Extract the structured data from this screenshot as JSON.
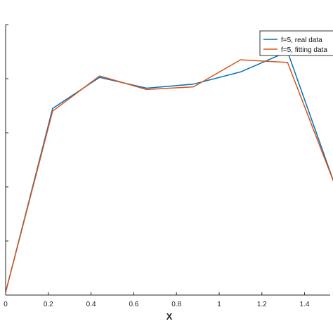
{
  "chart_data": {
    "type": "line",
    "xlabel": "X",
    "ylabel": "",
    "xlim": [
      0,
      1.6
    ],
    "ylim": [
      0,
      1
    ],
    "x_ticks": [
      0,
      0.2,
      0.4,
      0.6,
      0.8,
      1,
      1.2,
      1.4
    ],
    "x_tick_labels": [
      "0",
      "0.2",
      "0.4",
      "0.6",
      "0.8",
      "1",
      "1.2",
      "1.4"
    ],
    "y_ticks": [
      0,
      0.2,
      0.4,
      0.6,
      0.8,
      1
    ],
    "grid": false,
    "legend_position": "top-right",
    "series": [
      {
        "name": "f=5, real data",
        "color": "#0072BD",
        "x": [
          0,
          0.22,
          0.44,
          0.66,
          0.88,
          1.1,
          1.32,
          1.54
        ],
        "y": [
          0.01,
          0.69,
          0.805,
          0.765,
          0.78,
          0.825,
          0.9,
          0.41
        ]
      },
      {
        "name": "f=5, fitting data",
        "color": "#D95319",
        "x": [
          0,
          0.22,
          0.44,
          0.66,
          0.88,
          1.1,
          1.32,
          1.54
        ],
        "y": [
          0.01,
          0.68,
          0.81,
          0.76,
          0.77,
          0.87,
          0.86,
          0.41
        ]
      }
    ]
  }
}
